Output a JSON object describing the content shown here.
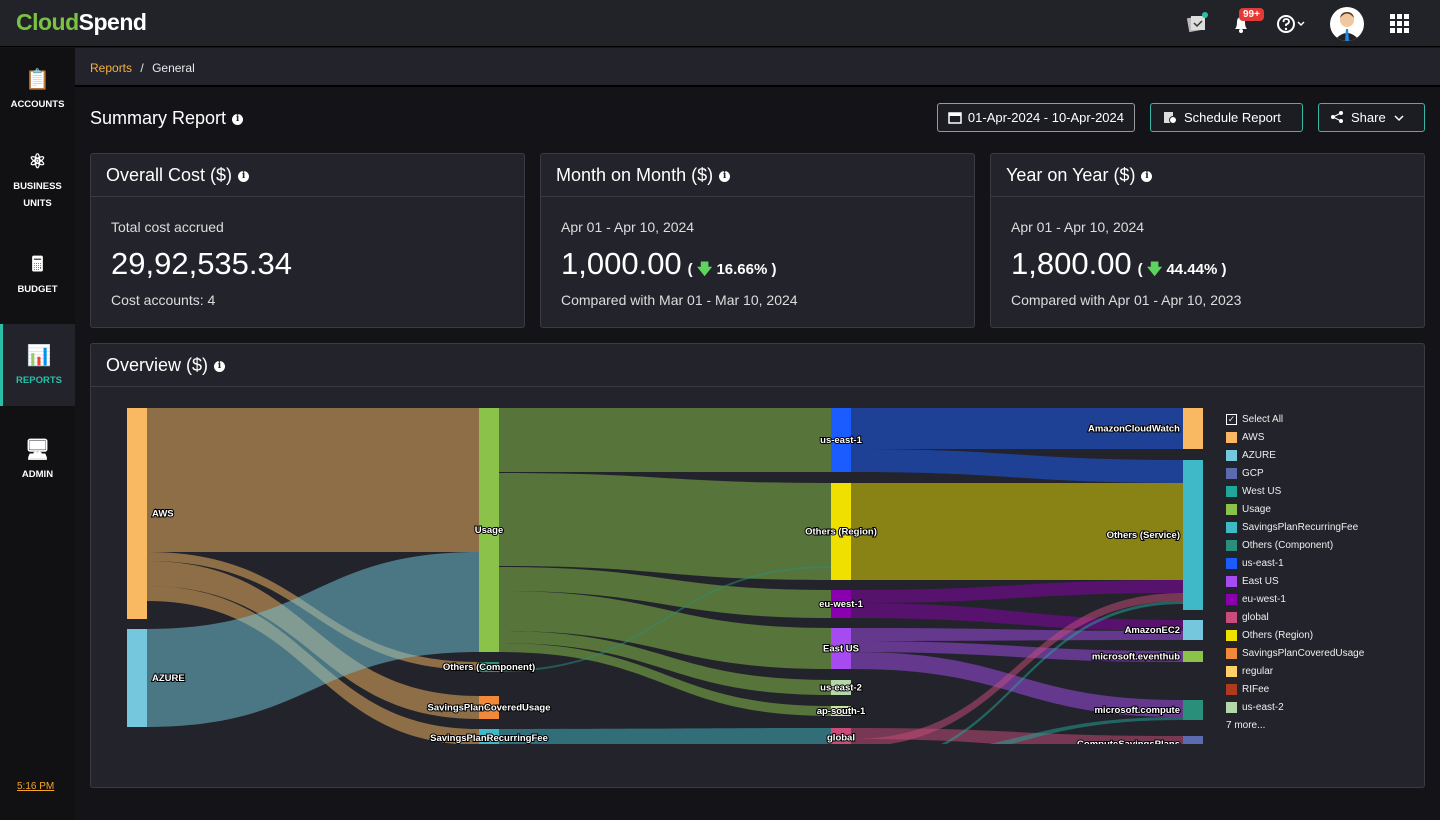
{
  "app": {
    "logo_part1": "Cloud",
    "logo_part2": "Spend",
    "notification_count": "99+"
  },
  "sidebar": {
    "items": [
      {
        "label": "ACCOUNTS"
      },
      {
        "label": "BUSINESS UNITS"
      },
      {
        "label": "BUDGET"
      },
      {
        "label": "REPORTS",
        "active": true
      },
      {
        "label": "ADMIN"
      }
    ],
    "time": "5:16 PM"
  },
  "breadcrumb": {
    "parent": "Reports",
    "separator": "/",
    "current": "General"
  },
  "page": {
    "title": "Summary Report",
    "date_range": "01-Apr-2024 - 10-Apr-2024",
    "schedule_label": "Schedule Report",
    "share_label": "Share"
  },
  "cards": [
    {
      "title": "Overall Cost ($)",
      "subtitle": "Total cost accrued",
      "value": "29,92,535.34",
      "footer": "Cost accounts: 4"
    },
    {
      "title": "Month on Month ($)",
      "subtitle": "Apr 01 - Apr 10, 2024",
      "value": "1,000.00",
      "change": "16.66%",
      "direction": "down",
      "footer": "Compared with Mar 01 - Mar 10, 2024"
    },
    {
      "title": "Year on Year ($)",
      "subtitle": "Apr 01 - Apr 10, 2024",
      "value": "1,800.00",
      "change": "44.44%",
      "direction": "down",
      "footer": "Compared with Apr 01 - Apr 10, 2023"
    }
  ],
  "overview": {
    "title": "Overview ($)",
    "legend": {
      "select_all": "Select All",
      "more": "7 more...",
      "items": [
        {
          "label": "AWS",
          "color": "#f9b862"
        },
        {
          "label": "AZURE",
          "color": "#74c7dd"
        },
        {
          "label": "GCP",
          "color": "#5c6bb0"
        },
        {
          "label": "West US",
          "color": "#1fa89a"
        },
        {
          "label": "Usage",
          "color": "#8bc34a"
        },
        {
          "label": "SavingsPlanRecurringFee",
          "color": "#3fb8c8"
        },
        {
          "label": "Others (Component)",
          "color": "#2a8f7a"
        },
        {
          "label": "us-east-1",
          "color": "#1a5cff"
        },
        {
          "label": "East US",
          "color": "#a64bf0"
        },
        {
          "label": "eu-west-1",
          "color": "#8a00b0"
        },
        {
          "label": "global",
          "color": "#c94c7a"
        },
        {
          "label": "Others (Region)",
          "color": "#f0e000"
        },
        {
          "label": "SavingsPlanCoveredUsage",
          "color": "#f08a3a"
        },
        {
          "label": "regular",
          "color": "#fdd06a"
        },
        {
          "label": "RIFee",
          "color": "#b03a1f"
        },
        {
          "label": "us-east-2",
          "color": "#b5d6a8"
        }
      ]
    },
    "chart_data": {
      "type": "sankey",
      "nodes": [
        {
          "name": "AWS",
          "color": "#f9b862",
          "label": "AWS"
        },
        {
          "name": "AZURE",
          "color": "#74c7dd",
          "label": "AZURE"
        },
        {
          "name": "GCP",
          "color": "#5c6bb0",
          "label": ""
        },
        {
          "name": "Usage",
          "color": "#8bc34a",
          "label": "Usage"
        },
        {
          "name": "Others (Component)",
          "color": "#2a8f7a",
          "label": "Others (Component)"
        },
        {
          "name": "SavingsPlanCoveredUsage",
          "color": "#f08a3a",
          "label": "SavingsPlanCoveredUsage"
        },
        {
          "name": "SavingsPlanRecurringFee",
          "color": "#3fb8c8",
          "label": "SavingsPlanRecurringFee"
        },
        {
          "name": "us-east-1",
          "color": "#1a5cff",
          "label": "us-east-1"
        },
        {
          "name": "Others (Region)",
          "color": "#f0e000",
          "label": "Others (Region)"
        },
        {
          "name": "eu-west-1",
          "color": "#8a00b0",
          "label": "eu-west-1"
        },
        {
          "name": "East US",
          "color": "#a64bf0",
          "label": "East US"
        },
        {
          "name": "us-east-2",
          "color": "#b5d6a8",
          "label": "us-east-2"
        },
        {
          "name": "ap-south-1",
          "color": "#c8e6a0",
          "label": "ap-south-1"
        },
        {
          "name": "global",
          "color": "#c94c7a",
          "label": "global"
        },
        {
          "name": "West US",
          "color": "#1fa89a",
          "label": ""
        },
        {
          "name": "AmazonCloudWatch",
          "color": "#f9b862",
          "label": "AmazonCloudWatch"
        },
        {
          "name": "Others (Service)",
          "color": "#3fb8c8",
          "label": "Others (Service)"
        },
        {
          "name": "AmazonEC2",
          "color": "#74c7dd",
          "label": "AmazonEC2"
        },
        {
          "name": "microsoft.eventhub",
          "color": "#8bc34a",
          "label": "microsoft.eventhub"
        },
        {
          "name": "microsoft.compute",
          "color": "#2a8f7a",
          "label": "microsoft.compute"
        },
        {
          "name": "ComputeSavingsPlans",
          "color": "#5c6bb0",
          "label": "ComputeSavingsPlans"
        }
      ],
      "links": [
        {
          "source": "AWS",
          "target": "Usage"
        },
        {
          "source": "AWS",
          "target": "Others (Component)"
        },
        {
          "source": "AWS",
          "target": "SavingsPlanCoveredUsage"
        },
        {
          "source": "AWS",
          "target": "SavingsPlanRecurringFee"
        },
        {
          "source": "AZURE",
          "target": "Usage"
        },
        {
          "source": "GCP",
          "target": "SavingsPlanRecurringFee"
        },
        {
          "source": "Usage",
          "target": "us-east-1"
        },
        {
          "source": "Usage",
          "target": "Others (Region)"
        },
        {
          "source": "Usage",
          "target": "eu-west-1"
        },
        {
          "source": "Usage",
          "target": "East US"
        },
        {
          "source": "Usage",
          "target": "us-east-2"
        },
        {
          "source": "Usage",
          "target": "ap-south-1"
        },
        {
          "source": "SavingsPlanRecurringFee",
          "target": "global"
        },
        {
          "source": "Others (Component)",
          "target": "Others (Region)"
        },
        {
          "source": "us-east-1",
          "target": "AmazonCloudWatch"
        },
        {
          "source": "us-east-1",
          "target": "Others (Service)"
        },
        {
          "source": "Others (Region)",
          "target": "Others (Service)"
        },
        {
          "source": "eu-west-1",
          "target": "Others (Service)"
        },
        {
          "source": "eu-west-1",
          "target": "AmazonEC2"
        },
        {
          "source": "East US",
          "target": "AmazonEC2"
        },
        {
          "source": "East US",
          "target": "microsoft.eventhub"
        },
        {
          "source": "East US",
          "target": "microsoft.compute"
        },
        {
          "source": "global",
          "target": "ComputeSavingsPlans"
        },
        {
          "source": "global",
          "target": "Others (Service)"
        },
        {
          "source": "West US",
          "target": "microsoft.compute"
        },
        {
          "source": "West US",
          "target": "AmazonEC2"
        }
      ]
    }
  }
}
